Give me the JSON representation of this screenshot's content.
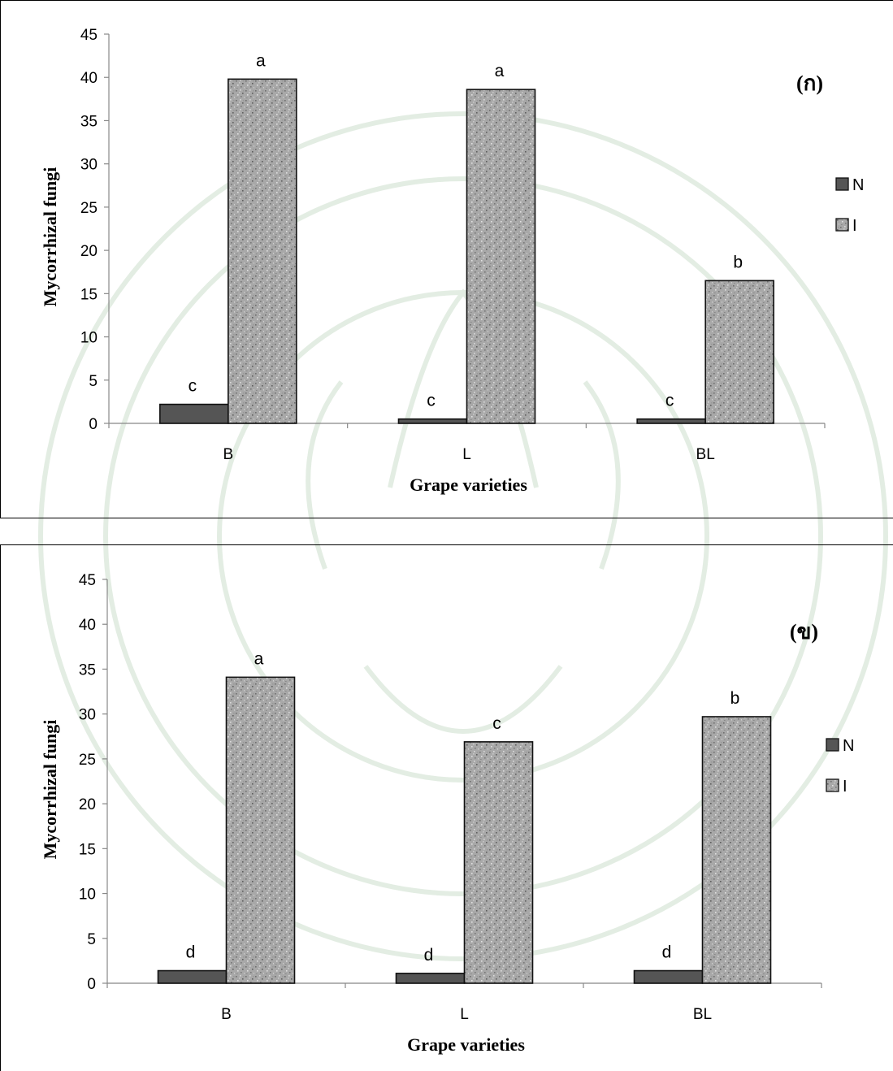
{
  "chart_data": [
    {
      "type": "bar",
      "panel_label": "(ก)",
      "categories": [
        "B",
        "L",
        "BL"
      ],
      "series": [
        {
          "name": "N",
          "values": [
            2.2,
            0.5,
            0.5
          ],
          "color": "#555555"
        },
        {
          "name": "I",
          "values": [
            39.8,
            38.6,
            16.5
          ],
          "color": "#a8a8a8"
        }
      ],
      "significance": {
        "N": [
          "c",
          "c",
          "c"
        ],
        "I": [
          "a",
          "a",
          "b"
        ]
      },
      "xlabel": "Grape varieties",
      "ylabel": "Mycorrhizal fungi",
      "ylim": [
        0,
        45
      ],
      "yticks": [
        0,
        5,
        10,
        15,
        20,
        25,
        30,
        35,
        40,
        45
      ],
      "legend_position": "right",
      "grid": false
    },
    {
      "type": "bar",
      "panel_label": "(ข)",
      "categories": [
        "B",
        "L",
        "BL"
      ],
      "series": [
        {
          "name": "N",
          "values": [
            1.4,
            1.1,
            1.4
          ],
          "color": "#555555"
        },
        {
          "name": "I",
          "values": [
            34.1,
            26.9,
            29.7
          ],
          "color": "#a8a8a8"
        }
      ],
      "significance": {
        "N": [
          "d",
          "d",
          "d"
        ],
        "I": [
          "a",
          "c",
          "b"
        ]
      },
      "xlabel": "Grape varieties",
      "ylabel": "Mycorrhizal fungi",
      "ylim": [
        0,
        45
      ],
      "yticks": [
        0,
        5,
        10,
        15,
        20,
        25,
        30,
        35,
        40,
        45
      ],
      "legend_position": "right",
      "grid": false
    }
  ]
}
